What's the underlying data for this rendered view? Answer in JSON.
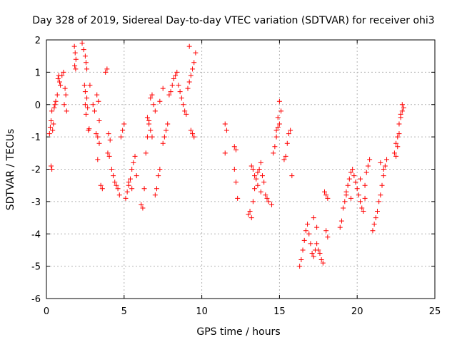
{
  "chart_data": {
    "type": "scatter",
    "title": "Day 328 of 2019, Sidereal Day-to-day VTEC variation (SDTVAR) for receiver ohi3",
    "xlabel": "GPS time / hours",
    "ylabel": "SDTVAR / TECUs",
    "xlim": [
      0,
      25
    ],
    "ylim": [
      -6,
      2
    ],
    "xticks": [
      "0",
      "5",
      "10",
      "15",
      "20",
      "25"
    ],
    "yticks": [
      "-6",
      "-5",
      "-4",
      "-3",
      "-2",
      "-1",
      "0",
      "1",
      "2"
    ],
    "grid": true,
    "marker": "plus",
    "color": "#ff0000",
    "series": [
      {
        "name": "SDTVAR",
        "x": [
          0.2,
          0.25,
          0.3,
          0.35,
          0.4,
          0.45,
          0.5,
          0.55,
          0.6,
          0.7,
          0.75,
          0.8,
          0.85,
          0.3,
          0.35,
          0.9,
          1.0,
          1.1,
          1.2,
          1.25,
          1.3,
          1.15,
          1.8,
          1.85,
          1.9,
          1.82,
          1.88,
          2.3,
          2.4,
          2.5,
          2.55,
          2.6,
          2.45,
          2.5,
          2.6,
          2.65,
          2.7,
          2.75,
          2.8,
          2.5,
          2.55,
          3.0,
          3.1,
          3.2,
          3.3,
          3.4,
          3.5,
          3.6,
          3.3,
          3.4,
          3.25,
          3.35,
          3.8,
          3.9,
          4.0,
          4.1,
          3.95,
          4.05,
          4.2,
          4.3,
          4.4,
          4.5,
          4.6,
          4.7,
          4.8,
          4.9,
          5.0,
          5.1,
          5.2,
          5.3,
          5.4,
          5.5,
          5.6,
          5.7,
          5.8,
          5.3,
          5.5,
          6.1,
          6.2,
          6.3,
          6.4,
          6.5,
          6.6,
          6.7,
          6.8,
          6.9,
          7.0,
          6.5,
          6.6,
          6.7,
          6.8,
          7.0,
          7.1,
          7.2,
          7.3,
          7.5,
          7.6,
          7.7,
          7.8,
          7.3,
          7.5,
          7.9,
          8.0,
          8.1,
          8.2,
          8.3,
          8.4,
          8.5,
          8.6,
          8.7,
          8.8,
          8.9,
          9.0,
          9.1,
          9.2,
          9.3,
          9.4,
          9.5,
          9.6,
          9.2,
          9.3,
          9.4,
          9.5,
          11.5,
          11.6,
          11.5,
          12.1,
          12.2,
          12.1,
          12.2,
          12.3,
          13.0,
          13.1,
          13.2,
          13.3,
          13.4,
          13.5,
          13.6,
          13.7,
          13.8,
          13.9,
          14.0,
          13.2,
          13.3,
          13.4,
          13.6,
          13.8,
          14.1,
          14.2,
          14.3,
          14.5,
          14.6,
          14.7,
          14.8,
          14.9,
          15.0,
          15.1,
          15.0,
          14.9,
          14.8,
          15.3,
          15.4,
          15.5,
          15.6,
          15.7,
          15.8,
          16.3,
          16.4,
          16.5,
          16.6,
          16.7,
          16.8,
          16.9,
          17.0,
          17.1,
          17.2,
          17.3,
          17.4,
          17.5,
          17.6,
          17.7,
          17.8,
          17.2,
          17.4,
          17.9,
          18.0,
          18.1,
          18.0,
          18.1,
          18.9,
          19.0,
          19.1,
          19.2,
          19.3,
          19.4,
          19.5,
          19.6,
          19.7,
          19.8,
          19.9,
          20.0,
          20.1,
          20.2,
          20.3,
          20.4,
          20.5,
          20.6,
          20.7,
          20.8,
          19.3,
          19.6,
          19.9,
          20.2,
          20.5,
          21.0,
          21.1,
          21.2,
          21.3,
          21.4,
          21.5,
          21.6,
          21.7,
          21.8,
          21.9,
          21.5,
          21.7,
          22.4,
          22.5,
          22.6,
          22.7,
          22.8,
          22.9,
          22.5,
          22.6,
          22.7,
          22.8,
          22.9,
          23.0
        ],
        "y": [
          -0.9,
          -0.7,
          -0.5,
          -0.2,
          -0.8,
          -0.6,
          -0.1,
          0.0,
          0.1,
          0.3,
          0.8,
          0.9,
          0.7,
          -1.9,
          -2.0,
          0.6,
          0.9,
          1.0,
          0.5,
          0.3,
          -0.2,
          0.0,
          1.8,
          1.6,
          1.4,
          1.2,
          1.1,
          1.9,
          1.7,
          1.5,
          1.3,
          1.1,
          0.6,
          0.4,
          0.2,
          -0.1,
          -0.8,
          -0.75,
          0.6,
          0.0,
          -0.3,
          0.0,
          -0.2,
          -0.9,
          -1.0,
          -1.2,
          -2.5,
          -2.6,
          -1.7,
          -0.5,
          0.3,
          0.1,
          1.0,
          1.1,
          -0.9,
          -1.1,
          -1.5,
          -1.6,
          -2.0,
          -2.2,
          -2.4,
          -2.5,
          -2.6,
          -2.8,
          -1.0,
          -0.8,
          -0.6,
          -2.9,
          -2.7,
          -2.5,
          -2.3,
          -2.0,
          -1.8,
          -1.6,
          -2.2,
          -2.4,
          -2.6,
          -3.1,
          -3.2,
          -2.6,
          -1.5,
          -1.0,
          -0.5,
          0.2,
          0.3,
          0.0,
          -0.2,
          -0.4,
          -0.6,
          -0.8,
          -1.0,
          -2.8,
          -2.6,
          -2.2,
          -2.0,
          -1.2,
          -1.0,
          -0.8,
          -0.6,
          0.1,
          0.5,
          0.3,
          0.4,
          0.6,
          0.8,
          0.9,
          1.0,
          0.6,
          0.4,
          0.2,
          0.0,
          -0.2,
          -0.3,
          0.5,
          0.7,
          0.9,
          1.1,
          1.3,
          1.6,
          1.8,
          -0.8,
          -0.9,
          -1.0,
          -0.6,
          -0.8,
          -1.5,
          -1.3,
          -1.4,
          -2.0,
          -2.4,
          -2.9,
          -3.4,
          -3.3,
          -3.5,
          -3.0,
          -2.6,
          -2.3,
          -2.1,
          -2.0,
          -1.8,
          -2.2,
          -2.4,
          -1.9,
          -2.0,
          -2.2,
          -2.5,
          -2.7,
          -2.8,
          -2.9,
          -3.0,
          -3.1,
          -1.5,
          -1.3,
          -1.0,
          -0.7,
          -0.6,
          -0.2,
          0.1,
          -0.4,
          -0.8,
          -1.7,
          -1.6,
          -1.2,
          -0.9,
          -0.8,
          -2.2,
          -5.0,
          -4.8,
          -4.5,
          -4.2,
          -3.9,
          -3.7,
          -4.0,
          -4.3,
          -4.6,
          -4.7,
          -4.5,
          -4.3,
          -4.5,
          -4.6,
          -4.8,
          -4.9,
          -3.5,
          -3.8,
          -2.7,
          -2.8,
          -2.9,
          -3.9,
          -4.1,
          -3.8,
          -3.6,
          -3.2,
          -3.0,
          -2.8,
          -2.5,
          -2.3,
          -2.1,
          -2.0,
          -2.2,
          -2.4,
          -2.6,
          -2.8,
          -3.0,
          -3.2,
          -3.3,
          -2.5,
          -2.1,
          -1.9,
          -1.7,
          -2.7,
          -2.9,
          -2.4,
          -2.3,
          -2.9,
          -3.9,
          -3.7,
          -3.5,
          -3.3,
          -3.0,
          -2.8,
          -2.5,
          -2.2,
          -1.9,
          -1.7,
          -1.8,
          -2.0,
          -1.5,
          -1.2,
          -1.0,
          -0.6,
          -0.4,
          -0.2,
          -1.6,
          -1.3,
          -0.9,
          -0.3,
          0.0,
          -0.1
        ]
      }
    ]
  }
}
